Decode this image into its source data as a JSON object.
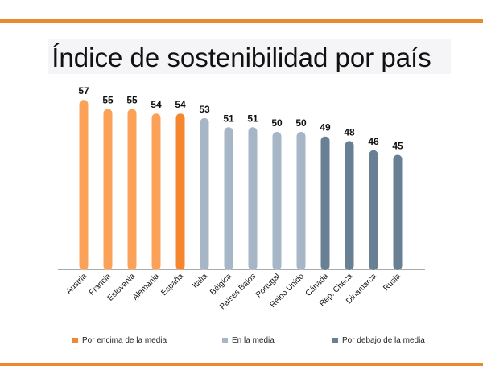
{
  "title": "Índice de sostenibilidad por país",
  "colors": {
    "rule": "#e98a2e",
    "above": "#fba158",
    "above_last": "#f5862e",
    "at": "#a7b6c6",
    "below": "#687f94"
  },
  "legend": [
    {
      "label": "Por encima de la media",
      "color": "#f5862e"
    },
    {
      "label": "En la media",
      "color": "#a7b6c6"
    },
    {
      "label": "Por debajo de la media",
      "color": "#687f94"
    }
  ],
  "chart_data": {
    "type": "bar",
    "title": "Índice de sostenibilidad por país",
    "categories": [
      "Austria",
      "Francia",
      "Eslovenia",
      "Alemania",
      "España",
      "Italia",
      "Bélgica",
      "Países Bajos",
      "Portugal",
      "Reino Unido",
      "Cánada",
      "Rep. Checa",
      "Dinamarca",
      "Rusia"
    ],
    "values": [
      57,
      55,
      55,
      54,
      54,
      53,
      51,
      51,
      50,
      50,
      49,
      48,
      46,
      45
    ],
    "groups": [
      "above",
      "above",
      "above",
      "above",
      "above",
      "at",
      "at",
      "at",
      "at",
      "at",
      "below",
      "below",
      "below",
      "below"
    ],
    "data_labels": true,
    "grid": false,
    "legend_position": "bottom"
  }
}
